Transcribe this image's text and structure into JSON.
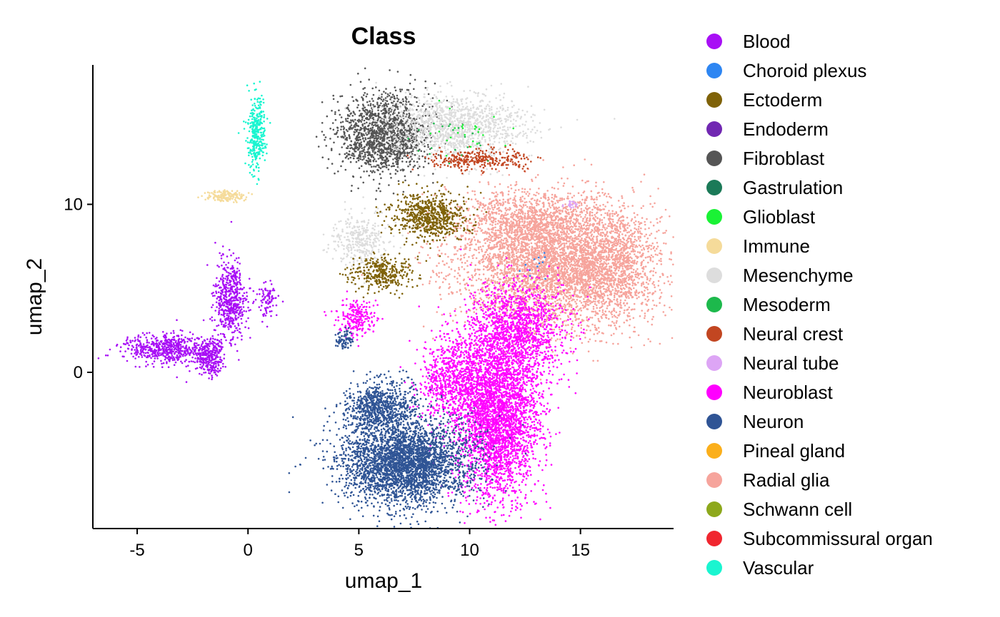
{
  "chart_data": {
    "type": "scatter",
    "title": "Class",
    "xlabel": "umap_1",
    "ylabel": "umap_2",
    "xlim": [
      -7,
      19.2
    ],
    "ylim": [
      -9.3,
      18.3
    ],
    "x_ticks": [
      "-5",
      "0",
      "5",
      "10",
      "15"
    ],
    "y_ticks": [
      "0",
      "10"
    ],
    "x_tick_values": [
      -5,
      0,
      5,
      10,
      15
    ],
    "y_tick_values": [
      0,
      10
    ],
    "grid": false,
    "legend_position": "right",
    "legend": [
      {
        "name": "Blood",
        "color": "#A80FF5"
      },
      {
        "name": "Choroid plexus",
        "color": "#2E86F2"
      },
      {
        "name": "Ectoderm",
        "color": "#7F6208"
      },
      {
        "name": "Endoderm",
        "color": "#7128B2"
      },
      {
        "name": "Fibroblast",
        "color": "#555555"
      },
      {
        "name": "Gastrulation",
        "color": "#1B7A58"
      },
      {
        "name": "Glioblast",
        "color": "#1AF235"
      },
      {
        "name": "Immune",
        "color": "#F5DB9A"
      },
      {
        "name": "Mesenchyme",
        "color": "#DDDDDD"
      },
      {
        "name": "Mesoderm",
        "color": "#1DB94C"
      },
      {
        "name": "Neural crest",
        "color": "#C24621"
      },
      {
        "name": "Neural tube",
        "color": "#DDA5F5"
      },
      {
        "name": "Neuroblast",
        "color": "#FF00FF"
      },
      {
        "name": "Neuron",
        "color": "#2F5495"
      },
      {
        "name": "Pineal gland",
        "color": "#FBAF1B"
      },
      {
        "name": "Radial glia",
        "color": "#F6A49C"
      },
      {
        "name": "Schwann cell",
        "color": "#8DA81C"
      },
      {
        "name": "Subcommissural organ",
        "color": "#F0262F"
      },
      {
        "name": "Vascular",
        "color": "#1AF5D0"
      }
    ],
    "clusters": [
      {
        "class": "Radial glia",
        "cx": 13.8,
        "cy": 6.6,
        "sx": 2.6,
        "sy": 2.3,
        "n": 4200
      },
      {
        "class": "Radial glia",
        "cx": 16.3,
        "cy": 6.2,
        "sx": 1.2,
        "sy": 2.0,
        "n": 900
      },
      {
        "class": "Radial glia",
        "cx": 12.5,
        "cy": 9.0,
        "sx": 1.8,
        "sy": 1.0,
        "n": 700
      },
      {
        "class": "Neuroblast",
        "cx": 11.3,
        "cy": -2.5,
        "sx": 1.1,
        "sy": 3.0,
        "n": 3200
      },
      {
        "class": "Neuroblast",
        "cx": 12.2,
        "cy": 2.5,
        "sx": 1.3,
        "sy": 1.8,
        "n": 1200
      },
      {
        "class": "Neuroblast",
        "cx": 9.3,
        "cy": -0.5,
        "sx": 0.9,
        "sy": 1.6,
        "n": 800
      },
      {
        "class": "Neuroblast",
        "cx": 4.9,
        "cy": 3.2,
        "sx": 0.5,
        "sy": 0.7,
        "n": 220
      },
      {
        "class": "Neuron",
        "cx": 7.1,
        "cy": -5.4,
        "sx": 1.7,
        "sy": 1.5,
        "n": 3200
      },
      {
        "class": "Neuron",
        "cx": 6.0,
        "cy": -2.1,
        "sx": 1.0,
        "sy": 0.9,
        "n": 800
      },
      {
        "class": "Neuron",
        "cx": 4.4,
        "cy": 2.0,
        "sx": 0.25,
        "sy": 0.4,
        "n": 80
      },
      {
        "class": "Fibroblast",
        "cx": 6.1,
        "cy": 14.2,
        "sx": 1.2,
        "sy": 1.4,
        "n": 1500
      },
      {
        "class": "Mesenchyme",
        "cx": 9.4,
        "cy": 14.6,
        "sx": 1.8,
        "sy": 1.1,
        "n": 1300
      },
      {
        "class": "Mesenchyme",
        "cx": 5.1,
        "cy": 7.8,
        "sx": 0.7,
        "sy": 1.0,
        "n": 350
      },
      {
        "class": "Ectoderm",
        "cx": 8.2,
        "cy": 9.3,
        "sx": 1.0,
        "sy": 0.8,
        "n": 700
      },
      {
        "class": "Ectoderm",
        "cx": 6.0,
        "cy": 5.9,
        "sx": 0.8,
        "sy": 0.6,
        "n": 350
      },
      {
        "class": "Neural crest",
        "cx": 10.4,
        "cy": 12.7,
        "sx": 1.3,
        "sy": 0.35,
        "n": 300
      },
      {
        "class": "Vascular",
        "cx": 0.4,
        "cy": 14.1,
        "sx": 0.25,
        "sy": 1.3,
        "n": 330
      },
      {
        "class": "Immune",
        "cx": -1.0,
        "cy": 10.5,
        "sx": 0.5,
        "sy": 0.2,
        "n": 150
      },
      {
        "class": "Blood",
        "cx": -0.8,
        "cy": 4.4,
        "sx": 0.45,
        "sy": 1.4,
        "n": 550
      },
      {
        "class": "Blood",
        "cx": -3.7,
        "cy": 1.4,
        "sx": 1.1,
        "sy": 0.5,
        "n": 550
      },
      {
        "class": "Blood",
        "cx": -1.7,
        "cy": 0.9,
        "sx": 0.4,
        "sy": 0.6,
        "n": 300
      },
      {
        "class": "Blood",
        "cx": 0.9,
        "cy": 4.3,
        "sx": 0.25,
        "sy": 0.6,
        "n": 90
      },
      {
        "class": "Neural tube",
        "cx": 14.6,
        "cy": 10.0,
        "sx": 0.2,
        "sy": 0.15,
        "n": 25
      },
      {
        "class": "Choroid plexus",
        "cx": 13.0,
        "cy": 6.4,
        "sx": 0.4,
        "sy": 0.6,
        "n": 12
      },
      {
        "class": "Glioblast",
        "cx": 9.7,
        "cy": 14.3,
        "sx": 1.2,
        "sy": 0.7,
        "n": 25
      },
      {
        "class": "Mesoderm",
        "cx": 9.2,
        "cy": 13.9,
        "sx": 1.0,
        "sy": 0.8,
        "n": 20
      }
    ]
  }
}
